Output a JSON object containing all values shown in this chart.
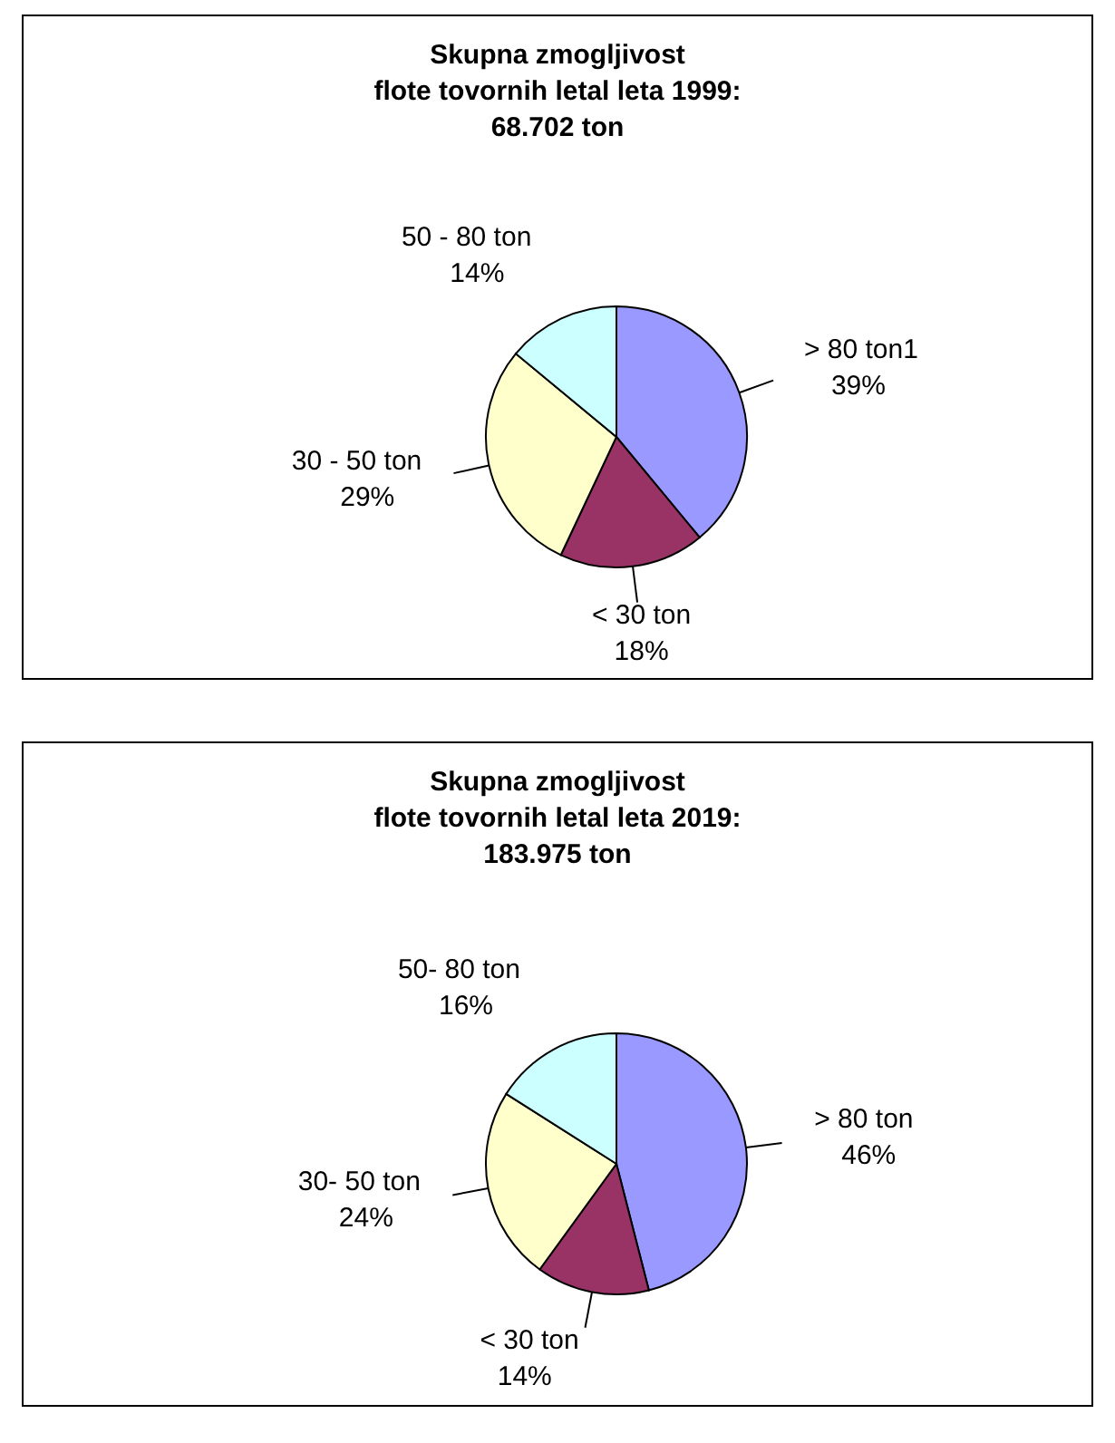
{
  "chart_data": [
    {
      "type": "pie",
      "title": "Skupna zmogljivost\nflote tovornih letal leta 1999:\n68.702 ton",
      "categories": [
        "> 80 ton1",
        "< 30 ton",
        "30 - 50 ton",
        "50 - 80 ton"
      ],
      "values": [
        39,
        18,
        29,
        14
      ],
      "value_labels": [
        "39%",
        "18%",
        "29%",
        "14%"
      ],
      "colors": [
        "#9999ff",
        "#993366",
        "#ffffcc",
        "#ccffff"
      ],
      "legend": false
    },
    {
      "type": "pie",
      "title": "Skupna zmogljivost\nflote tovornih letal leta 2019:\n183.975 ton",
      "categories": [
        "> 80 ton",
        "< 30 ton",
        "30- 50 ton",
        "50- 80 ton"
      ],
      "values": [
        46,
        14,
        24,
        16
      ],
      "value_labels": [
        "46%",
        "14%",
        "24%",
        "16%"
      ],
      "colors": [
        "#9999ff",
        "#993366",
        "#ffffcc",
        "#ccffff"
      ],
      "legend": false
    }
  ]
}
